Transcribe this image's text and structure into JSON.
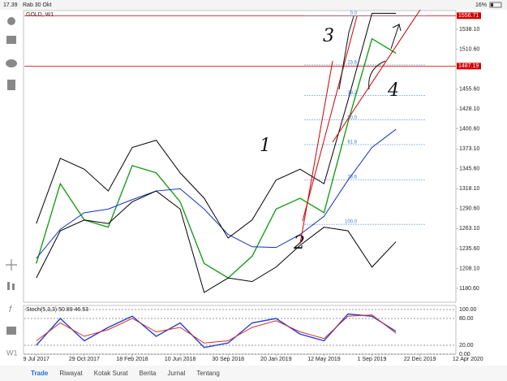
{
  "status": {
    "time": "17.39",
    "date": "Rab 30 Okt",
    "battery": "16%"
  },
  "chart_data": {
    "type": "line",
    "title": "GOLD, W1",
    "x": [
      "2017-07-09",
      "2017-09-03",
      "2017-10-29",
      "2017-12-24",
      "2018-02-18",
      "2018-04-15",
      "2018-06-10",
      "2018-08-05",
      "2018-09-30",
      "2018-11-25",
      "2019-01-20",
      "2019-03-17",
      "2019-05-12",
      "2019-07-07",
      "2019-09-01",
      "2019-10-27"
    ],
    "series": [
      {
        "color": "#1a9e1a",
        "values": [
          1215,
          1325,
          1275,
          1265,
          1350,
          1340,
          1300,
          1215,
          1195,
          1225,
          1290,
          1305,
          1285,
          1410,
          1525,
          1505
        ]
      },
      {
        "color": "#1030c0",
        "values": [
          1222,
          1262,
          1285,
          1290,
          1303,
          1315,
          1318,
          1290,
          1255,
          1238,
          1237,
          1255,
          1280,
          1330,
          1375,
          1400
        ]
      },
      {
        "color": "#000000",
        "values": [
          1270,
          1360,
          1345,
          1315,
          1375,
          1385,
          1340,
          1305,
          1250,
          1275,
          1330,
          1345,
          1325,
          1440,
          1560,
          1560
        ]
      },
      {
        "color": "#000000",
        "values": [
          1195,
          1260,
          1275,
          1270,
          1300,
          1315,
          1290,
          1175,
          1195,
          1190,
          1210,
          1240,
          1265,
          1260,
          1210,
          1245
        ]
      }
    ],
    "xlim": [
      "2017-06-11",
      "2020-03-15"
    ],
    "xticks": [
      {
        "value": "2017-07-09",
        "label": "9 Jul 2017"
      },
      {
        "value": "2017-10-29",
        "label": "29 Oct 2017"
      },
      {
        "value": "2018-02-18",
        "label": "18 Feb 2018"
      },
      {
        "value": "2018-06-10",
        "label": "10 Jun 2018"
      },
      {
        "value": "2018-09-30",
        "label": "30 Sep 2018"
      },
      {
        "value": "2019-01-20",
        "label": "20 Jan 2019"
      },
      {
        "value": "2019-05-12",
        "label": "12 May 2019"
      },
      {
        "value": "2019-09-01",
        "label": "1 Sep 2019"
      },
      {
        "value": "2019-12-22",
        "label": "22 Dec 2019"
      },
      {
        "value": "2020-04-12",
        "label": "12 Apr 2020"
      }
    ],
    "ylim": [
      1163.8,
      1562.7
    ],
    "yticks": [
      {
        "value": 1538.1,
        "label": "1538.10"
      },
      {
        "value": 1510.6,
        "label": "1510.60"
      },
      {
        "value": 1455.6,
        "label": "1455.60"
      },
      {
        "value": 1428.1,
        "label": "1428.10"
      },
      {
        "value": 1400.6,
        "label": "1400.60"
      },
      {
        "value": 1373.1,
        "label": "1373.10"
      },
      {
        "value": 1345.6,
        "label": "1345.60"
      },
      {
        "value": 1318.1,
        "label": "1318.10"
      },
      {
        "value": 1290.6,
        "label": "1290.60"
      },
      {
        "value": 1263.1,
        "label": "1263.10"
      },
      {
        "value": 1235.6,
        "label": "1235.60"
      },
      {
        "value": 1208.1,
        "label": "1208.10"
      },
      {
        "value": 1180.6,
        "label": "1180.60"
      }
    ],
    "hlines": [
      1556.71,
      1487.19
    ],
    "hline_color": "#d00000",
    "fib": {
      "high": 1556.71,
      "low": 1269,
      "color": "#3a7fd0",
      "levels": [
        {
          "value": 0,
          "label": "0.0"
        },
        {
          "value": 23.6,
          "label": "23.6"
        },
        {
          "value": 38.2,
          "label": "38.2"
        },
        {
          "value": 50,
          "label": "50.0"
        },
        {
          "value": 61.8,
          "label": "61.8"
        },
        {
          "value": 78.6,
          "label": "78.6"
        },
        {
          "value": 100,
          "label": "100.0"
        }
      ]
    },
    "annotations": [
      "3",
      "1",
      "4",
      "2"
    ],
    "stoch": {
      "title": "Stoch(5,3,3) 50.89 46.53",
      "ylim": [
        0,
        100
      ],
      "yticks": [
        {
          "value": 100,
          "label": "100.00"
        },
        {
          "value": 80,
          "label": "80.00"
        },
        {
          "value": 20,
          "label": "20.00"
        },
        {
          "value": 0,
          "label": "0.00"
        }
      ],
      "series": [
        {
          "color": "#2a3fd0",
          "values": [
            20,
            80,
            30,
            60,
            85,
            40,
            70,
            15,
            25,
            70,
            80,
            45,
            30,
            90,
            85,
            51
          ]
        },
        {
          "color": "#d03030",
          "values": [
            30,
            70,
            40,
            55,
            80,
            50,
            60,
            25,
            30,
            60,
            75,
            50,
            35,
            85,
            88,
            47
          ]
        }
      ]
    }
  },
  "tabs": [
    "Trade",
    "Riwayat",
    "Kotak Surat",
    "Berita",
    "Jurnal",
    "Tentang"
  ]
}
